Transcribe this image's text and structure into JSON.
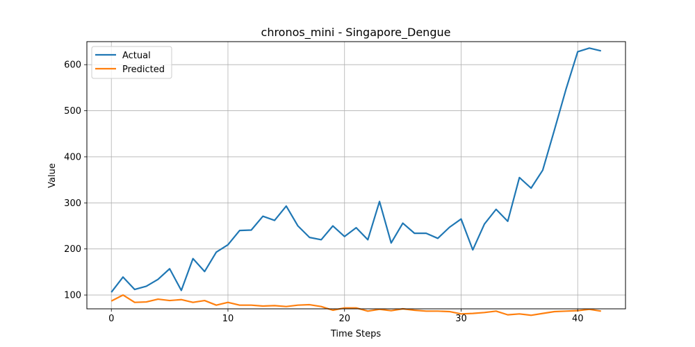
{
  "chart_data": {
    "type": "line",
    "title": "chronos_mini - Singapore_Dengue",
    "xlabel": "Time Steps",
    "ylabel": "Value",
    "xlim": [
      -2.1,
      44.1
    ],
    "ylim": [
      70,
      650
    ],
    "xticks": [
      0,
      10,
      20,
      30,
      40
    ],
    "yticks": [
      100,
      200,
      300,
      400,
      500,
      600
    ],
    "grid": true,
    "legend_position": "top-left",
    "x": [
      0,
      1,
      2,
      3,
      4,
      5,
      6,
      7,
      8,
      9,
      10,
      11,
      12,
      13,
      14,
      15,
      16,
      17,
      18,
      19,
      20,
      21,
      22,
      23,
      24,
      25,
      26,
      27,
      28,
      29,
      30,
      31,
      32,
      33,
      34,
      35,
      36,
      37,
      38,
      39,
      40,
      41,
      42
    ],
    "series": [
      {
        "name": "Actual",
        "color": "#1f77b4",
        "values": [
          106,
          139,
          112,
          119,
          134,
          157,
          110,
          179,
          151,
          193,
          209,
          240,
          241,
          271,
          262,
          293,
          250,
          225,
          220,
          250,
          227,
          246,
          220,
          303,
          213,
          256,
          234,
          234,
          223,
          247,
          265,
          198,
          254,
          286,
          260,
          355,
          332,
          371,
          458,
          547,
          628,
          636,
          630
        ]
      },
      {
        "name": "Predicted",
        "color": "#ff7f0e",
        "values": [
          87,
          100,
          84,
          85,
          91,
          88,
          90,
          84,
          88,
          78,
          84,
          78,
          78,
          76,
          77,
          75,
          78,
          79,
          75,
          67,
          72,
          72,
          65,
          69,
          66,
          70,
          67,
          65,
          65,
          64,
          59,
          60,
          62,
          65,
          57,
          59,
          56,
          60,
          64,
          65,
          66,
          69,
          65
        ]
      }
    ]
  }
}
